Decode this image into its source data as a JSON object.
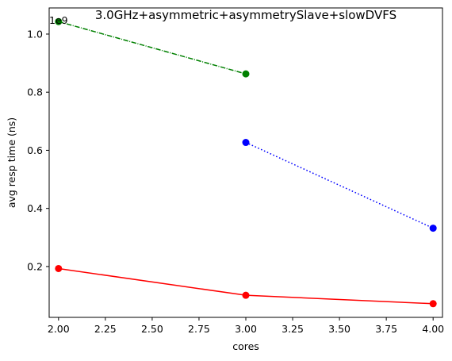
{
  "chart_data": {
    "type": "line",
    "title": "3.0GHz+asymmetric+asymmetrySlave+slowDVFS",
    "xlabel": "cores",
    "ylabel": "avg resp time (ns)",
    "y_offset_text": "1e9",
    "xlim": [
      1.95,
      4.05
    ],
    "ylim": [
      0.025,
      1.09
    ],
    "x_ticks": [
      2.0,
      2.25,
      2.5,
      2.75,
      3.0,
      3.25,
      3.5,
      3.75,
      4.0
    ],
    "x_tick_labels": [
      "2.00",
      "2.25",
      "2.50",
      "2.75",
      "3.00",
      "3.25",
      "3.50",
      "3.75",
      "4.00"
    ],
    "y_ticks": [
      0.2,
      0.4,
      0.6,
      0.8,
      1.0
    ],
    "y_tick_labels": [
      "0.2",
      "0.4",
      "0.6",
      "0.8",
      "1.0"
    ],
    "grid": false,
    "series": [
      {
        "x": [
          2,
          3
        ],
        "y": [
          1.043,
          0.863
        ],
        "color": "#008000",
        "line_style": "dashdot",
        "marker": "circle"
      },
      {
        "x": [
          3,
          4
        ],
        "y": [
          0.627,
          0.332
        ],
        "color": "#0000ff",
        "line_style": "dotted",
        "marker": "circle"
      },
      {
        "x": [
          2,
          3,
          4
        ],
        "y": [
          0.193,
          0.101,
          0.072
        ],
        "color": "#ff0000",
        "line_style": "solid",
        "marker": "circle"
      }
    ]
  }
}
